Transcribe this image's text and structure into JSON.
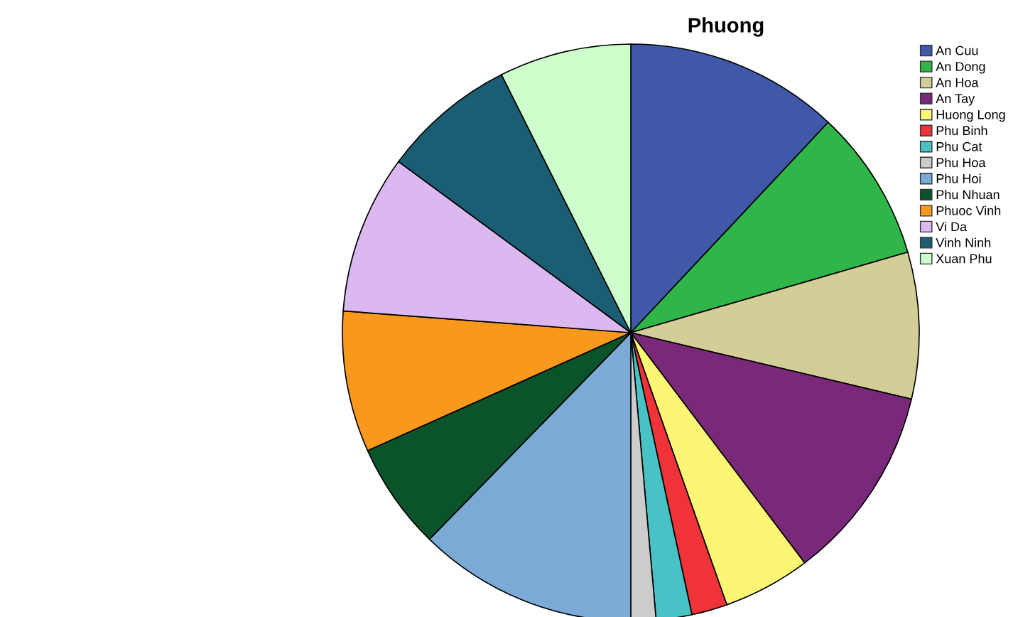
{
  "chart_data": {
    "type": "pie",
    "title": "Phuong",
    "categories": [
      "An Cuu",
      "An Dong",
      "An Hoa",
      "An Tay",
      "Huong Long",
      "Phu Binh",
      "Phu Cat",
      "Phu Hoa",
      "Phu Hoi",
      "Phu Nhuan",
      "Phuoc Vinh",
      "Vi Da",
      "Vinh Ninh",
      "Xuan Phu"
    ],
    "values": [
      12.0,
      8.5,
      8.2,
      11.0,
      4.9,
      2.0,
      2.0,
      1.4,
      12.3,
      6.0,
      7.9,
      8.9,
      7.5,
      7.4
    ],
    "colors": [
      "#3f59a8",
      "#2fb548",
      "#d3ce97",
      "#7a287a",
      "#fbf775",
      "#ef3338",
      "#48c2c5",
      "#cccccc",
      "#7baad6",
      "#0b542b",
      "#f8981d",
      "#dbb8ef",
      "#1b5e74",
      "#ccffcc"
    ],
    "legend": "top right"
  }
}
